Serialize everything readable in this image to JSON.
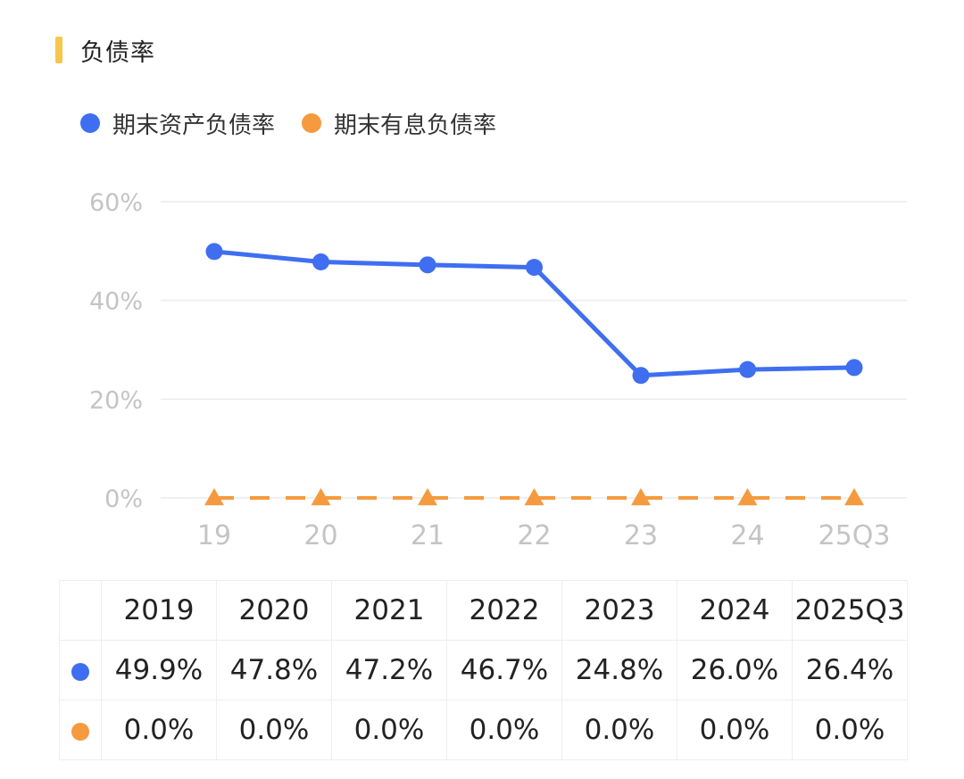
{
  "header": {
    "title": "负债率",
    "accent": "#f7c64a"
  },
  "chart_data": {
    "type": "line",
    "categories": [
      "19",
      "20",
      "21",
      "22",
      "23",
      "24",
      "25Q3"
    ],
    "ylim": [
      0,
      60
    ],
    "yticks": [
      "0%",
      "20%",
      "40%",
      "60%"
    ],
    "ytick_values": [
      0,
      20,
      40,
      60
    ],
    "grid": true,
    "legend_position": "top-left",
    "series": [
      {
        "name": "期末资产负债率",
        "values": [
          49.9,
          47.8,
          47.2,
          46.7,
          24.8,
          26.0,
          26.4
        ],
        "color": "#3f6ef0",
        "marker": "circle",
        "line_style": "solid"
      },
      {
        "name": "期末有息负债率",
        "values": [
          0.0,
          0.0,
          0.0,
          0.0,
          0.0,
          0.0,
          0.0
        ],
        "color": "#f59a3e",
        "marker": "triangle",
        "line_style": "dashed"
      }
    ]
  },
  "table": {
    "columns": [
      "2019",
      "2020",
      "2021",
      "2022",
      "2023",
      "2024",
      "2025Q3"
    ],
    "rows": [
      {
        "color": "#3f6ef0",
        "values": [
          "49.9%",
          "47.8%",
          "47.2%",
          "46.7%",
          "24.8%",
          "26.0%",
          "26.4%"
        ]
      },
      {
        "color": "#f59a3e",
        "values": [
          "0.0%",
          "0.0%",
          "0.0%",
          "0.0%",
          "0.0%",
          "0.0%",
          "0.0%"
        ]
      }
    ]
  }
}
